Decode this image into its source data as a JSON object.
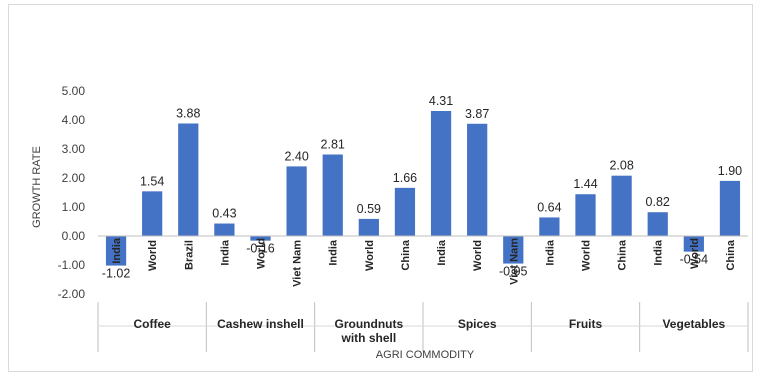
{
  "chart_data": {
    "type": "bar",
    "xlabel": "AGRI COMMODITY",
    "ylabel": "GROWTH RATE",
    "ylim": [
      -2.0,
      5.0
    ],
    "yticks": [
      "5.00",
      "4.00",
      "3.00",
      "2.00",
      "1.00",
      "0.00",
      "-1.00",
      "-2.00"
    ],
    "grid": false,
    "bar_color": "#4472c4",
    "groups": [
      {
        "name": "Coffee",
        "categories": [
          "India",
          "World",
          "Brazil"
        ],
        "values": [
          -1.02,
          1.54,
          3.88
        ],
        "labels": [
          "-1.02",
          "1.54",
          "3.88"
        ]
      },
      {
        "name": "Cashew inshell",
        "categories": [
          "India",
          "World",
          "Viet Nam"
        ],
        "values": [
          0.43,
          -0.16,
          2.4
        ],
        "labels": [
          "0.43",
          "-0.16",
          "2.40"
        ]
      },
      {
        "name": "Groundnuts with shell",
        "categories": [
          "India",
          "World",
          "China"
        ],
        "values": [
          2.81,
          0.59,
          1.66
        ],
        "labels": [
          "2.81",
          "0.59",
          "1.66"
        ]
      },
      {
        "name": "Spices",
        "categories": [
          "India",
          "World",
          "Viet Nam"
        ],
        "values": [
          4.31,
          3.87,
          -0.95
        ],
        "labels": [
          "4.31",
          "3.87",
          "-0.95"
        ]
      },
      {
        "name": "Fruits",
        "categories": [
          "India",
          "World",
          "China"
        ],
        "values": [
          0.64,
          1.44,
          2.08
        ],
        "labels": [
          "0.64",
          "1.44",
          "2.08"
        ]
      },
      {
        "name": "Vegetables",
        "categories": [
          "India",
          "World",
          "China"
        ],
        "values": [
          0.82,
          -0.54,
          1.9
        ],
        "labels": [
          "0.82",
          "-0.54",
          "1.90"
        ]
      }
    ]
  }
}
